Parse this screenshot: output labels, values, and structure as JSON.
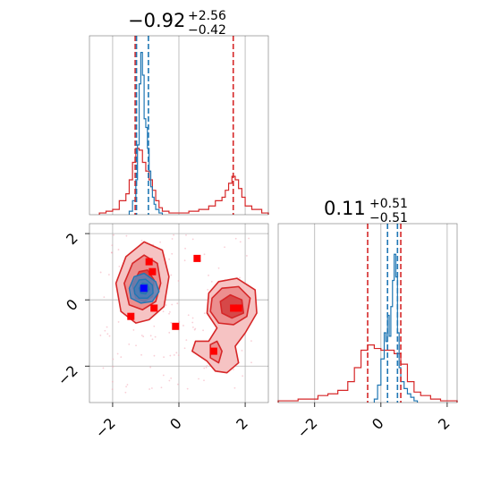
{
  "colors": {
    "prior": "#d62728",
    "posterior": "#1f77b4",
    "truth_marker": "#ff0000",
    "posterior_marker": "#0000ff",
    "grid": "#b0b0b0"
  },
  "titles": {
    "param1": {
      "median": "−0.92",
      "plus": "+2.56",
      "minus": "−0.42"
    },
    "param2": {
      "median": "0.11",
      "plus": "+0.51",
      "minus": "−0.51"
    }
  },
  "chart_data": [
    {
      "type": "histogram",
      "panel": "param1-marginal",
      "xlim": [
        -2.7,
        2.7
      ],
      "grid": true,
      "series": [
        {
          "color": "#d62728",
          "bins": [
            -2.4,
            -2.2,
            -2.0,
            -1.8,
            -1.6,
            -1.5,
            -1.4,
            -1.3,
            -1.2,
            -1.1,
            -1.0,
            -0.9,
            -0.8,
            -0.7,
            -0.6,
            -0.5,
            -0.3,
            0.0,
            0.3,
            0.6,
            0.9,
            1.1,
            1.3,
            1.4,
            1.5,
            1.6,
            1.7,
            1.8,
            1.9,
            2.0,
            2.2,
            2.5,
            2.7
          ],
          "values": [
            0.01,
            0.02,
            0.03,
            0.08,
            0.12,
            0.2,
            0.3,
            0.38,
            0.37,
            0.3,
            0.25,
            0.2,
            0.14,
            0.08,
            0.04,
            0.02,
            0.01,
            0.01,
            0.02,
            0.03,
            0.05,
            0.08,
            0.1,
            0.14,
            0.18,
            0.22,
            0.2,
            0.15,
            0.1,
            0.05,
            0.03,
            0.01
          ]
        },
        {
          "color": "#1f77b4",
          "bins": [
            -1.5,
            -1.4,
            -1.3,
            -1.25,
            -1.2,
            -1.15,
            -1.1,
            -1.05,
            -1.0,
            -0.95,
            -0.9,
            -0.85,
            -0.8,
            -0.75,
            -0.7,
            -0.6,
            -0.5
          ],
          "values": [
            0.02,
            0.08,
            0.2,
            0.4,
            0.75,
            0.93,
            0.8,
            0.55,
            0.5,
            0.38,
            0.25,
            0.16,
            0.1,
            0.06,
            0.03,
            0.01
          ]
        }
      ],
      "vlines": [
        {
          "x": -1.32,
          "color": "#d62728"
        },
        {
          "x": -1.28,
          "color": "#1f77b4"
        },
        {
          "x": -0.92,
          "color": "#1f77b4"
        },
        {
          "x": 1.64,
          "color": "#d62728"
        }
      ]
    },
    {
      "type": "contour",
      "panel": "joint",
      "xlim": [
        -2.7,
        2.7
      ],
      "ylim": [
        -3.1,
        2.3
      ],
      "xticks": [
        -2,
        0,
        2
      ],
      "yticks": [
        -2,
        0,
        2
      ],
      "xtick_labels": [
        "−2",
        "0",
        "2"
      ],
      "ytick_labels": [
        "−2",
        "0",
        "2"
      ],
      "grid": true,
      "prior_regions": [
        {
          "levels": [
            [
              [
                -1.9,
                0.5
              ],
              [
                -1.6,
                1.3
              ],
              [
                -1.05,
                1.75
              ],
              [
                -0.5,
                1.5
              ],
              [
                -0.3,
                0.7
              ],
              [
                -0.45,
                -0.2
              ],
              [
                -0.9,
                -0.6
              ],
              [
                -1.3,
                -0.7
              ],
              [
                -1.75,
                -0.35
              ]
            ],
            [
              [
                -1.65,
                0.5
              ],
              [
                -1.4,
                1.1
              ],
              [
                -1.05,
                1.35
              ],
              [
                -0.65,
                1.1
              ],
              [
                -0.55,
                0.5
              ],
              [
                -0.7,
                -0.05
              ],
              [
                -1.1,
                -0.3
              ],
              [
                -1.5,
                -0.15
              ]
            ],
            [
              [
                -1.4,
                0.45
              ],
              [
                -1.2,
                0.85
              ],
              [
                -0.95,
                0.9
              ],
              [
                -0.75,
                0.6
              ],
              [
                -0.8,
                0.1
              ],
              [
                -1.05,
                -0.05
              ],
              [
                -1.3,
                0.05
              ]
            ]
          ]
        },
        {
          "levels": [
            [
              [
                0.9,
                0.2
              ],
              [
                1.2,
                0.55
              ],
              [
                1.75,
                0.65
              ],
              [
                2.3,
                0.3
              ],
              [
                2.35,
                -0.4
              ],
              [
                2.0,
                -1.0
              ],
              [
                1.7,
                -1.4
              ],
              [
                1.8,
                -1.9
              ],
              [
                1.45,
                -2.2
              ],
              [
                1.1,
                -2.15
              ],
              [
                0.85,
                -1.85
              ],
              [
                0.4,
                -1.55
              ],
              [
                0.5,
                -1.25
              ],
              [
                0.9,
                -1.25
              ],
              [
                1.15,
                -0.85
              ],
              [
                0.85,
                -0.4
              ]
            ],
            [
              [
                1.0,
                0.05
              ],
              [
                1.3,
                0.35
              ],
              [
                1.8,
                0.4
              ],
              [
                2.15,
                0.05
              ],
              [
                2.05,
                -0.5
              ],
              [
                1.65,
                -0.75
              ],
              [
                1.2,
                -0.7
              ],
              [
                0.95,
                -0.35
              ]
            ],
            [
              [
                1.25,
                -0.05
              ],
              [
                1.55,
                0.15
              ],
              [
                1.9,
                0.0
              ],
              [
                1.95,
                -0.4
              ],
              [
                1.6,
                -0.55
              ],
              [
                1.3,
                -0.4
              ]
            ],
            [
              [
                0.95,
                -1.35
              ],
              [
                1.15,
                -1.25
              ],
              [
                1.3,
                -1.55
              ],
              [
                1.2,
                -1.9
              ],
              [
                0.95,
                -1.75
              ]
            ]
          ]
        }
      ],
      "posterior_contours": [
        [
          [
            -1.5,
            0.35
          ],
          [
            -1.35,
            0.7
          ],
          [
            -1.05,
            0.8
          ],
          [
            -0.7,
            0.55
          ],
          [
            -0.6,
            0.25
          ],
          [
            -0.8,
            -0.05
          ],
          [
            -1.15,
            -0.1
          ],
          [
            -1.45,
            0.05
          ]
        ],
        [
          [
            -1.35,
            0.35
          ],
          [
            -1.2,
            0.6
          ],
          [
            -1.0,
            0.62
          ],
          [
            -0.8,
            0.45
          ],
          [
            -0.78,
            0.2
          ],
          [
            -0.95,
            0.05
          ],
          [
            -1.2,
            0.05
          ],
          [
            -1.33,
            0.18
          ]
        ],
        [
          [
            -1.2,
            0.35
          ],
          [
            -1.1,
            0.5
          ],
          [
            -0.95,
            0.48
          ],
          [
            -0.9,
            0.32
          ],
          [
            -1.0,
            0.18
          ],
          [
            -1.15,
            0.2
          ]
        ]
      ],
      "truth_points": [
        [
          -0.9,
          1.15
        ],
        [
          -0.8,
          0.85
        ],
        [
          -1.45,
          -0.5
        ],
        [
          -0.75,
          -0.25
        ],
        [
          -0.1,
          -0.8
        ],
        [
          0.55,
          1.25
        ],
        [
          1.65,
          -0.25
        ],
        [
          1.8,
          -0.25
        ],
        [
          1.05,
          -1.55
        ]
      ],
      "posterior_point": [
        -1.06,
        0.35
      ]
    },
    {
      "type": "histogram",
      "panel": "param2-marginal",
      "xlim": [
        -3.1,
        2.3
      ],
      "xticks": [
        -2,
        0,
        2
      ],
      "xtick_labels": [
        "−2",
        "0",
        "2"
      ],
      "grid": true,
      "series": [
        {
          "color": "#d62728",
          "bins": [
            -3.1,
            -2.8,
            -2.5,
            -2.2,
            -1.9,
            -1.6,
            -1.3,
            -1.0,
            -0.8,
            -0.6,
            -0.4,
            -0.2,
            0.0,
            0.2,
            0.4,
            0.6,
            0.8,
            1.0,
            1.2,
            1.5,
            1.8,
            2.1,
            2.3
          ],
          "values": [
            0.01,
            0.01,
            0.02,
            0.02,
            0.04,
            0.05,
            0.07,
            0.12,
            0.2,
            0.3,
            0.33,
            0.31,
            0.3,
            0.3,
            0.28,
            0.22,
            0.12,
            0.06,
            0.04,
            0.02,
            0.01,
            0.01
          ]
        },
        {
          "color": "#1f77b4",
          "bins": [
            -0.2,
            -0.1,
            0.0,
            0.1,
            0.15,
            0.2,
            0.25,
            0.3,
            0.35,
            0.4,
            0.45,
            0.5,
            0.55,
            0.6,
            0.7,
            0.8,
            0.9,
            1.0,
            1.1
          ],
          "values": [
            0.02,
            0.1,
            0.25,
            0.4,
            0.35,
            0.5,
            0.38,
            0.55,
            0.7,
            0.85,
            0.72,
            0.4,
            0.2,
            0.12,
            0.08,
            0.05,
            0.03,
            0.01
          ]
        }
      ],
      "vlines": [
        {
          "x": -0.4,
          "color": "#d62728"
        },
        {
          "x": 0.2,
          "color": "#1f77b4"
        },
        {
          "x": 0.5,
          "color": "#1f77b4"
        },
        {
          "x": 0.6,
          "color": "#d62728"
        }
      ]
    }
  ]
}
